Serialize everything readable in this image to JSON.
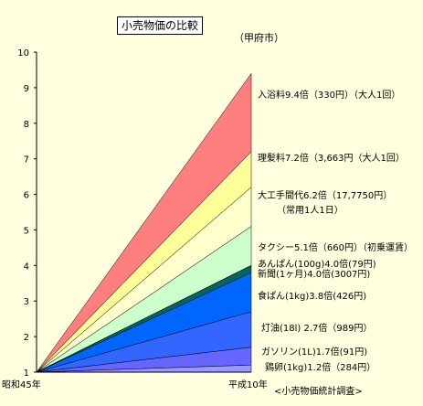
{
  "title": "小売物価の比較",
  "unit_note": "（甲府市）",
  "source": "<小売物価統計調査>",
  "chart_data": {
    "type": "area",
    "title": "小売物価の比較",
    "x_categories": [
      "昭和45年",
      "平成10年"
    ],
    "ylim": [
      1,
      10
    ],
    "y_ticks": [
      "1",
      "2",
      "3",
      "4",
      "5",
      "6",
      "7",
      "8",
      "9",
      "10"
    ],
    "series": [
      {
        "name": "入浴料",
        "value": 9.4,
        "label": "入浴料9.4倍（330円）（大人1回）",
        "color": "#ff7f7f"
      },
      {
        "name": "理髪料",
        "value": 7.2,
        "label": "理髪料7.2倍（3,663円（大人1回）",
        "color": "#ffff99"
      },
      {
        "name": "大工手間代",
        "value": 6.2,
        "label": "大工手間代6.2倍（17,7750円）",
        "label2": "（常用1人1日）",
        "color": "#ffffcc"
      },
      {
        "name": "タクシー",
        "value": 5.1,
        "label": "タクシー5.1倍（660円）（初乗運賃）",
        "color": "#ccffcc"
      },
      {
        "name": "あんぱん",
        "value": 4.0,
        "label": "あんぱん(100g)4.0倍(79円)",
        "color": "#339966"
      },
      {
        "name": "新聞",
        "value": 4.0,
        "label": "新聞(1ヶ月)4.0倍(3007円)",
        "color": "#006666"
      },
      {
        "name": "食ぱん",
        "value": 3.8,
        "label": "食ぱん(1kg)3.8倍(426円)",
        "color": "#0066ff"
      },
      {
        "name": "灯油",
        "value": 2.7,
        "label": "灯油(18l) 2.7倍（989円）",
        "color": "#3366ff"
      },
      {
        "name": "ガソリン",
        "value": 1.7,
        "label": "ガソリン(1L)1.7倍(91円)",
        "color": "#6666ff"
      },
      {
        "name": "鶏卵",
        "value": 1.2,
        "label": "鶏卵(1kg)1.2倍（284円）",
        "color": "#9999ff"
      }
    ]
  }
}
